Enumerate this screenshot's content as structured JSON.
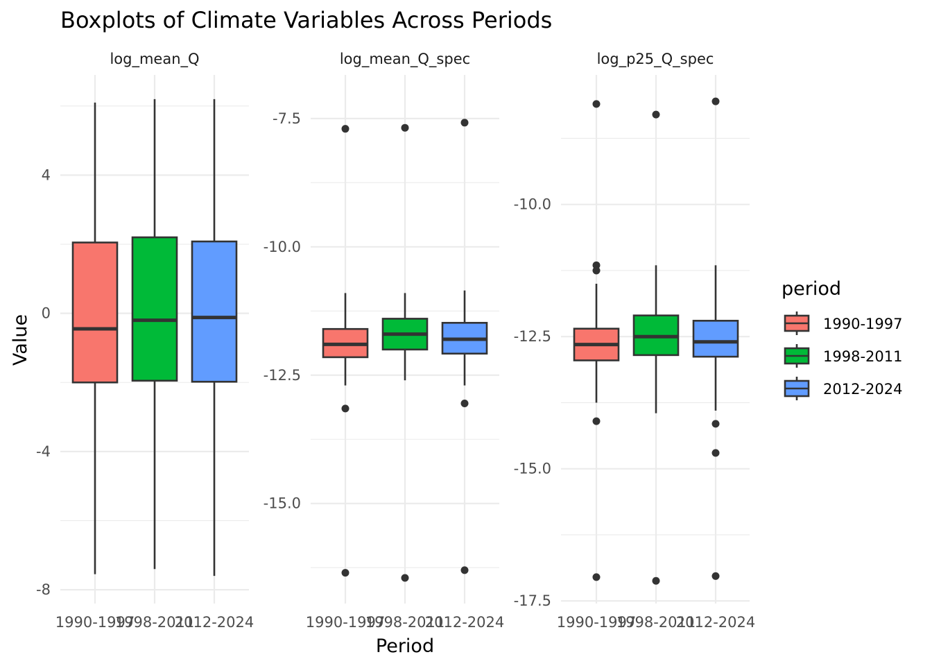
{
  "title": "Boxplots of Climate Variables Across Periods",
  "xlabel": "Period",
  "ylabel": "Value",
  "legend": {
    "title": "period",
    "position": "right",
    "items": [
      {
        "label": "1990-1997",
        "color": "#F8766D"
      },
      {
        "label": "1998-2011",
        "color": "#00BA38"
      },
      {
        "label": "2012-2024",
        "color": "#619CFF"
      }
    ]
  },
  "chart_data": [
    {
      "type": "boxplot",
      "facet": "log_mean_Q",
      "categories": [
        "1990-1997",
        "1998-2011",
        "2012-2024"
      ],
      "yticks": [
        -8,
        -4,
        0,
        4
      ],
      "ytick_labels": [
        "-8",
        "-4",
        "0",
        "4"
      ],
      "ylim": [
        -8.4,
        6.9
      ],
      "grid": true,
      "boxes": [
        {
          "category": "1990-1997",
          "whisker_low": -7.55,
          "q1": -2.0,
          "median": -0.45,
          "q3": 2.05,
          "whisker_high": 6.1,
          "outliers": []
        },
        {
          "category": "1998-2011",
          "whisker_low": -7.4,
          "q1": -1.95,
          "median": -0.2,
          "q3": 2.2,
          "whisker_high": 6.2,
          "outliers": []
        },
        {
          "category": "2012-2024",
          "whisker_low": -7.6,
          "q1": -1.98,
          "median": -0.12,
          "q3": 2.08,
          "whisker_high": 6.2,
          "outliers": []
        }
      ]
    },
    {
      "type": "boxplot",
      "facet": "log_mean_Q_spec",
      "categories": [
        "1990-1997",
        "1998-2011",
        "2012-2024"
      ],
      "yticks": [
        -15.0,
        -12.5,
        -10.0,
        -7.5
      ],
      "ytick_labels": [
        "-15.0",
        "-12.5",
        "-10.0",
        "-7.5"
      ],
      "ylim": [
        -16.95,
        -6.65
      ],
      "grid": true,
      "boxes": [
        {
          "category": "1990-1997",
          "whisker_low": -12.7,
          "q1": -12.15,
          "median": -11.9,
          "q3": -11.6,
          "whisker_high": -10.9,
          "outliers": [
            -7.7,
            -13.15,
            -16.35
          ]
        },
        {
          "category": "1998-2011",
          "whisker_low": -12.6,
          "q1": -12.0,
          "median": -11.7,
          "q3": -11.4,
          "whisker_high": -10.9,
          "outliers": [
            -7.68,
            -16.45
          ]
        },
        {
          "category": "2012-2024",
          "whisker_low": -12.7,
          "q1": -12.08,
          "median": -11.8,
          "q3": -11.48,
          "whisker_high": -10.85,
          "outliers": [
            -7.58,
            -13.05,
            -16.3
          ]
        }
      ]
    },
    {
      "type": "boxplot",
      "facet": "log_p25_Q_spec",
      "categories": [
        "1990-1997",
        "1998-2011",
        "2012-2024"
      ],
      "yticks": [
        -17.5,
        -15.0,
        -12.5,
        -10.0
      ],
      "ytick_labels": [
        "-17.5",
        "-15.0",
        "-12.5",
        "-10.0"
      ],
      "ylim": [
        -17.55,
        -7.55
      ],
      "grid": true,
      "boxes": [
        {
          "category": "1990-1997",
          "whisker_low": -13.75,
          "q1": -12.95,
          "median": -12.65,
          "q3": -12.35,
          "whisker_high": -11.5,
          "outliers": [
            -8.1,
            -11.15,
            -11.25,
            -14.1,
            -17.05
          ]
        },
        {
          "category": "1998-2011",
          "whisker_low": -13.95,
          "q1": -12.85,
          "median": -12.5,
          "q3": -12.1,
          "whisker_high": -11.15,
          "outliers": [
            -8.3,
            -17.12
          ]
        },
        {
          "category": "2012-2024",
          "whisker_low": -13.9,
          "q1": -12.88,
          "median": -12.6,
          "q3": -12.2,
          "whisker_high": -11.15,
          "outliers": [
            -8.05,
            -14.15,
            -14.7,
            -17.03
          ]
        }
      ]
    }
  ]
}
